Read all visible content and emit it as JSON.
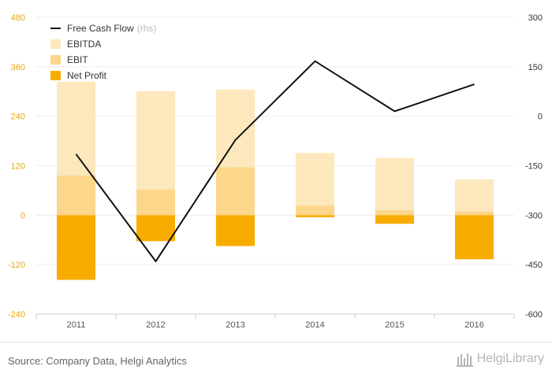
{
  "colors": {
    "ebitda": "#fde8bd",
    "ebit": "#fcd68a",
    "net_profit": "#f8ac00",
    "free_cash_flow": "#111111",
    "left_axis_text": "#e8a800"
  },
  "chart_data": {
    "type": "bar",
    "categories": [
      "2011",
      "2012",
      "2013",
      "2014",
      "2015",
      "2016"
    ],
    "series": [
      {
        "name": "EBITDA",
        "type": "bar",
        "axis": "left",
        "values": [
          324,
          301,
          305,
          151,
          139,
          87
        ]
      },
      {
        "name": "EBIT",
        "type": "bar",
        "axis": "left",
        "values": [
          96,
          62,
          116,
          23,
          12,
          9
        ]
      },
      {
        "name": "Net Profit",
        "type": "bar",
        "axis": "left",
        "values": [
          -157,
          -63,
          -75,
          -5,
          -21,
          -107
        ]
      },
      {
        "name": "Free Cash Flow",
        "type": "line",
        "axis": "right",
        "values": [
          -115,
          -440,
          -72,
          167,
          15,
          97
        ]
      }
    ],
    "legend": [
      {
        "label": "Free Cash Flow",
        "note": "(rhs)",
        "marker": "line"
      },
      {
        "label": "EBITDA",
        "note": "",
        "marker": "box"
      },
      {
        "label": "EBIT",
        "note": "",
        "marker": "box"
      },
      {
        "label": "Net Profit",
        "note": "",
        "marker": "box"
      }
    ],
    "legend_position": "top-left",
    "y_left": {
      "ticks": [
        480,
        360,
        240,
        120,
        0,
        -120,
        -240
      ],
      "ylim": [
        -240,
        480
      ]
    },
    "y_right": {
      "ticks": [
        300,
        150,
        0,
        -150,
        -300,
        -450,
        -600
      ],
      "ylim": [
        -600,
        300
      ]
    },
    "grid": true
  },
  "footer": {
    "source": "Source: Company Data, Helgi Analytics",
    "brand": "HelgiLibrary"
  }
}
